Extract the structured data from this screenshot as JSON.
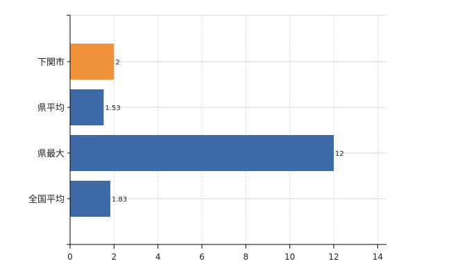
{
  "chart_data": {
    "type": "bar",
    "orientation": "horizontal",
    "title": "",
    "xlabel": "",
    "ylabel": "",
    "categories": [
      "下関市",
      "県平均",
      "県最大",
      "全国平均"
    ],
    "values": [
      2,
      1.53,
      12,
      1.83
    ],
    "data_labels": [
      "2",
      "1.53",
      "12",
      "1.83"
    ],
    "bar_colors": [
      "#f0923a",
      "#3d6aa6",
      "#3d6aa6",
      "#3d6aa6"
    ],
    "highlight_color": "#f0923a",
    "base_color": "#3d6aa6",
    "xlim": [
      0,
      14.4
    ],
    "xticks": [
      0,
      2,
      4,
      6,
      8,
      10,
      12,
      14
    ],
    "xtick_labels": [
      "0",
      "2",
      "4",
      "6",
      "8",
      "10",
      "12",
      "14"
    ],
    "grid": true,
    "legend": "none"
  }
}
